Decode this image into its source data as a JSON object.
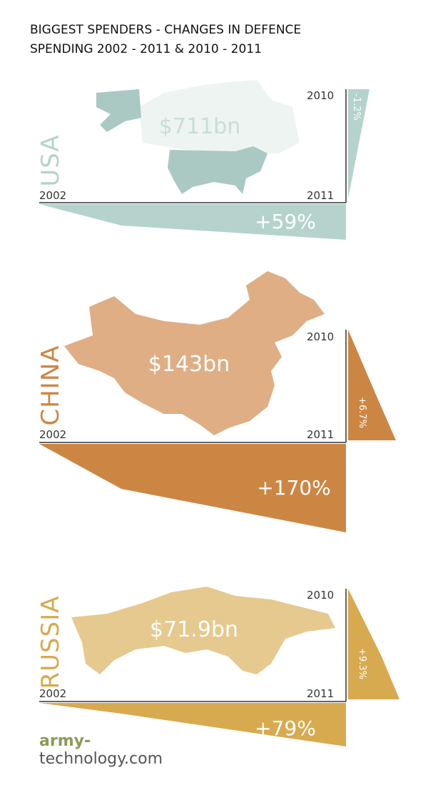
{
  "header": {
    "title": [
      "BIGGEST SPENDERS - CHANGES IN DEFENCE",
      "SPENDING 2002 - 2011 & 2010 - 2011"
    ]
  },
  "panels": [
    {
      "country": "USA",
      "total": "$711bn",
      "change_2002_2011": "+59%",
      "change_2010_2011": "-1.2%",
      "year_start": "2002",
      "year_mid": "2010",
      "year_end": "2011"
    },
    {
      "country": "CHINA",
      "total": "$143bn",
      "change_2002_2011": "+170%",
      "change_2010_2011": "+6.7%",
      "year_start": "2002",
      "year_mid": "2010",
      "year_end": "2011"
    },
    {
      "country": "RUSSIA",
      "total": "$71.9bn",
      "change_2002_2011": "+79%",
      "change_2010_2011": "+9.3%",
      "year_start": "2002",
      "year_mid": "2010",
      "year_end": "2011"
    }
  ],
  "footer": {
    "brand_1": "army-",
    "brand_2": "technology.com"
  }
}
